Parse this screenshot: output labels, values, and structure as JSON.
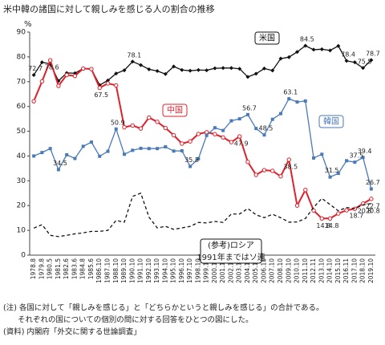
{
  "chart_data": {
    "type": "line",
    "title": "米中韓の諸国に対して親しみを感じる人の割合の推移",
    "y_label": "%",
    "categories": [
      "1978.8",
      "1979.8",
      "1980.5",
      "1981.5",
      "1982.6",
      "1983.6",
      "1984.8",
      "1985.6",
      "1986.10",
      "1987.10",
      "1988.10",
      "1989.10",
      "1990.10",
      "1991.10",
      "1992.10",
      "1993.10",
      "1994.10",
      "1995.10",
      "1996.10",
      "1997.10",
      "1998.10",
      "1999.10",
      "2000.10",
      "2001.10",
      "2002.10",
      "2003.10",
      "2004.10",
      "2005.10",
      "2006.10",
      "2007.10",
      "2008.10",
      "2009.10",
      "2010.10",
      "2011.10",
      "2012.11",
      "2013.10",
      "2014.10",
      "2015.10",
      "2016.11",
      "2017.10",
      "2018.10",
      "2019.10"
    ],
    "series": [
      {
        "name": "米国",
        "color": "#111111",
        "marker": "diamond",
        "dash": false,
        "values": [
          72.7,
          77.8,
          77.2,
          70.3,
          73.5,
          73.4,
          75.3,
          75.0,
          68.6,
          70.5,
          73.3,
          74.6,
          78.1,
          76.7,
          75.0,
          74.3,
          73.1,
          76.1,
          74.7,
          74.4,
          74.7,
          74.6,
          75.4,
          75.5,
          75.5,
          75.2,
          71.9,
          73.2,
          75.3,
          74.5,
          79.3,
          79.9,
          82.0,
          84.5,
          82.9,
          83.1,
          82.6,
          84.4,
          78.4,
          77.8,
          75.5,
          78.7
        ],
        "value_labels": [
          "72.7",
          null,
          null,
          null,
          null,
          null,
          null,
          null,
          null,
          null,
          null,
          null,
          "78.1",
          null,
          null,
          null,
          null,
          null,
          null,
          null,
          null,
          null,
          null,
          null,
          null,
          null,
          null,
          null,
          null,
          null,
          null,
          null,
          null,
          "84.5",
          null,
          null,
          null,
          null,
          "78.4",
          null,
          "75.5",
          "78.7"
        ]
      },
      {
        "name": "中国",
        "color": "#e0202a",
        "marker": "circle",
        "dash": false,
        "values": [
          62.1,
          70.1,
          78.6,
          68.3,
          72.7,
          72.3,
          75.3,
          75.1,
          67.5,
          69.3,
          68.5,
          51.6,
          52.3,
          51.1,
          55.5,
          53.8,
          51.3,
          48.4,
          45.0,
          45.9,
          48.9,
          49.6,
          48.8,
          47.5,
          45.6,
          47.9,
          37.6,
          32.4,
          34.3,
          34.0,
          31.8,
          38.5,
          20.0,
          26.3,
          18.0,
          14.8,
          14.8,
          16.8,
          18.1,
          18.7,
          20.8,
          22.7
        ],
        "value_labels": [
          null,
          null,
          "78.6",
          null,
          null,
          null,
          null,
          null,
          "67.5",
          null,
          null,
          null,
          null,
          null,
          null,
          null,
          null,
          null,
          null,
          null,
          null,
          null,
          null,
          null,
          null,
          "47.9",
          null,
          null,
          null,
          null,
          null,
          "38.5",
          null,
          null,
          null,
          "14.8",
          "14.8",
          null,
          null,
          "18.7",
          "20.8",
          "22.7"
        ]
      },
      {
        "name": "韓国",
        "color": "#4a7ab8",
        "marker": "square",
        "dash": false,
        "values": [
          40.0,
          41.4,
          43.0,
          34.5,
          40.5,
          39.0,
          43.9,
          45.6,
          39.9,
          41.9,
          50.9,
          40.7,
          42.3,
          43.1,
          43.0,
          43.0,
          43.7,
          42.0,
          42.1,
          35.8,
          38.9,
          48.3,
          51.4,
          50.3,
          54.2,
          55.0,
          56.7,
          51.1,
          48.5,
          54.8,
          57.1,
          63.1,
          61.8,
          62.2,
          39.2,
          40.7,
          31.5,
          33.0,
          38.1,
          37.5,
          39.4,
          26.7
        ],
        "value_labels": [
          null,
          null,
          null,
          "34.5",
          null,
          null,
          null,
          null,
          null,
          null,
          "50.9",
          null,
          null,
          null,
          null,
          null,
          null,
          null,
          null,
          "35.8",
          null,
          null,
          null,
          null,
          null,
          null,
          "56.7",
          null,
          "48.5",
          null,
          null,
          "63.1",
          null,
          null,
          null,
          null,
          "31.5",
          null,
          null,
          "37.5",
          "39.4",
          "26.7"
        ]
      },
      {
        "name": "(参考)ロシア",
        "color": "#111111",
        "marker": "none",
        "dash": true,
        "values": [
          10.9,
          12.3,
          8.0,
          7.5,
          8.0,
          8.6,
          9.0,
          9.6,
          9.6,
          10.0,
          14.0,
          13.3,
          23.7,
          25.0,
          15.3,
          11.0,
          11.6,
          10.4,
          11.0,
          11.6,
          13.2,
          13.0,
          13.6,
          13.2,
          16.6,
          16.6,
          18.8,
          16.3,
          15.1,
          16.5,
          15.1,
          13.3,
          13.4,
          14.8,
          19.3,
          22.9,
          20.4,
          17.9,
          19.2,
          18.8,
          20.3,
          20.8
        ],
        "value_labels": [
          null,
          null,
          null,
          null,
          null,
          null,
          null,
          null,
          null,
          null,
          null,
          null,
          null,
          null,
          null,
          null,
          null,
          null,
          null,
          null,
          null,
          null,
          null,
          null,
          null,
          null,
          null,
          null,
          null,
          null,
          null,
          null,
          null,
          null,
          null,
          null,
          null,
          null,
          null,
          null,
          null,
          "20.8"
        ]
      }
    ],
    "annotations": [
      "1991年まではソ連"
    ],
    "ylim": [
      0,
      90
    ],
    "yticks": [
      0,
      10,
      20,
      30,
      40,
      50,
      60,
      70,
      80,
      90
    ],
    "grid": false,
    "notes": [
      "(注) 各国に対して「親しみを感じる」と「どちらかというと親しみを感じる」の合計である。",
      "それぞれの国についての個別の問に対する回答をひとつの図にした。",
      "(資料) 内閣府「外交に関する世論調査」"
    ]
  }
}
